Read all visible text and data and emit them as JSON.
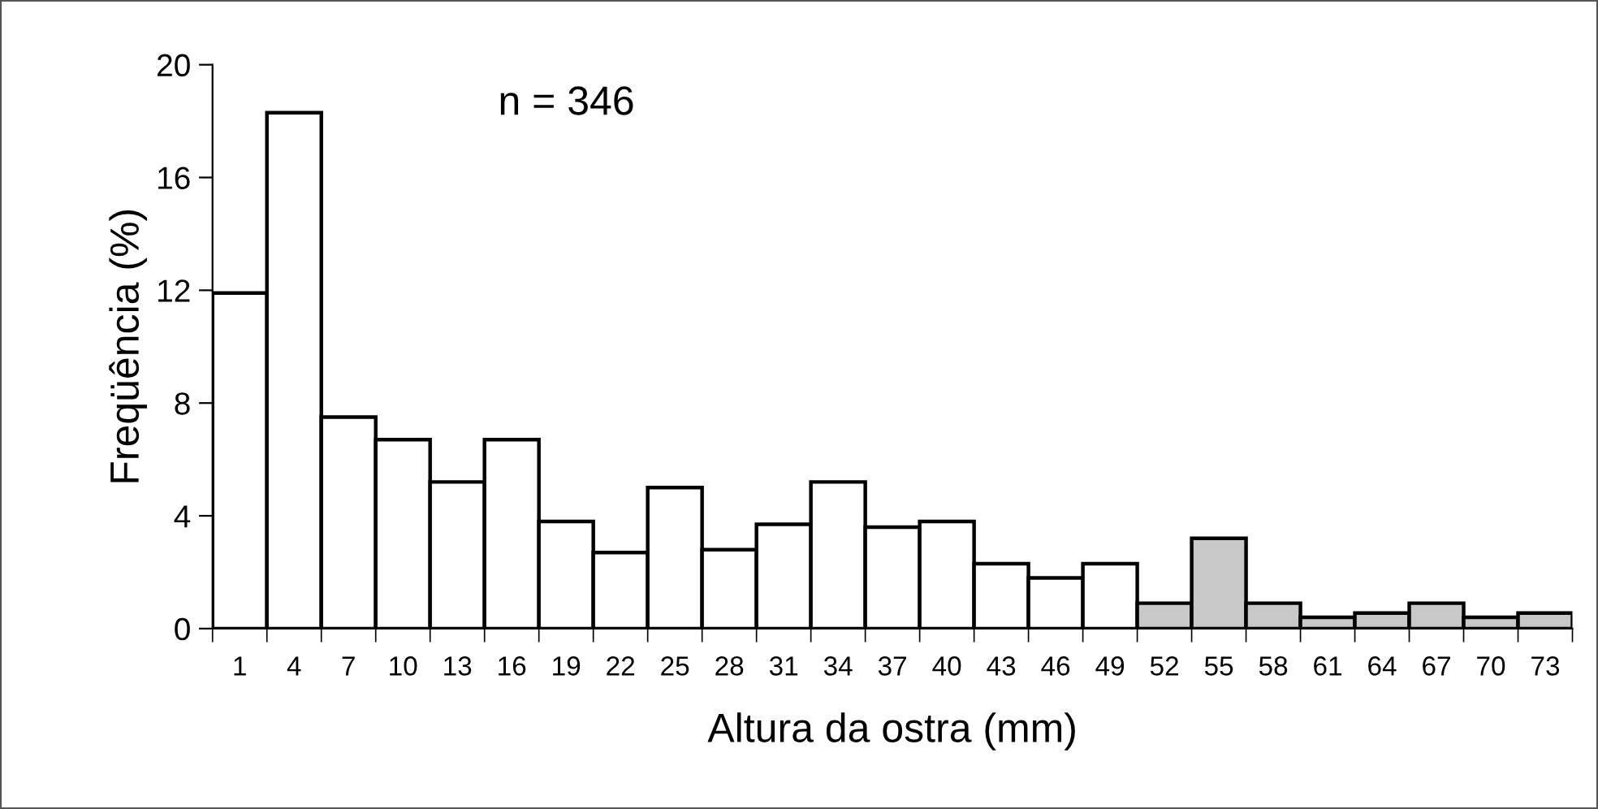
{
  "chart_data": {
    "type": "bar",
    "xlabel": "Altura da ostra (mm)",
    "ylabel": "Freqüência (%)",
    "categories": [
      "1",
      "4",
      "7",
      "10",
      "13",
      "16",
      "19",
      "22",
      "25",
      "28",
      "31",
      "34",
      "37",
      "40",
      "43",
      "46",
      "49",
      "52",
      "55",
      "58",
      "61",
      "64",
      "67",
      "70",
      "73"
    ],
    "series": [
      {
        "color": "#ffffff",
        "values": [
          11.9,
          18.3,
          7.5,
          6.7,
          5.2,
          6.7,
          3.8,
          2.7,
          5.0,
          2.8,
          3.7,
          5.2,
          3.6,
          3.8,
          2.3,
          1.8,
          2.3,
          null,
          null,
          null,
          null,
          null,
          null,
          null,
          null
        ]
      },
      {
        "color": "#c8c8c8",
        "values": [
          null,
          null,
          null,
          null,
          null,
          null,
          null,
          null,
          null,
          null,
          null,
          null,
          null,
          null,
          null,
          null,
          null,
          0.9,
          3.2,
          0.9,
          0.4,
          0.55,
          0.9,
          0.4,
          0.55
        ]
      }
    ],
    "ylim": [
      0,
      20
    ],
    "yticks": [
      0,
      4,
      8,
      12,
      16,
      20
    ],
    "grid": false,
    "legend": false,
    "annotations": [
      "n = 346"
    ]
  }
}
